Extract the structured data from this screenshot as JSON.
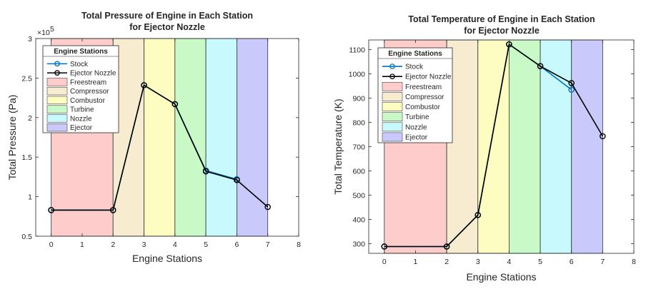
{
  "chart_data": [
    {
      "type": "line",
      "title": [
        "Total Pressure of Engine in Each Station",
        "for Ejector Nozzle"
      ],
      "xlabel": "Engine Stations",
      "ylabel": "Total Pressure (Pa)",
      "exponent_label": "×10",
      "exponent_power": "5",
      "xlim": [
        -0.5,
        8
      ],
      "ylim": [
        0.5,
        3
      ],
      "xticks": [
        "0",
        "1",
        "2",
        "3",
        "4",
        "5",
        "6",
        "7",
        "8"
      ],
      "xtick_values": [
        0,
        1,
        2,
        3,
        4,
        5,
        6,
        7,
        8
      ],
      "yticks": [
        "0.5",
        "1",
        "1.5",
        "2",
        "2.5",
        "3"
      ],
      "ytick_values": [
        0.5,
        1,
        1.5,
        2,
        2.5,
        3
      ],
      "legend": {
        "title": "Engine Stations",
        "placement": "top-left",
        "entries": [
          "Stock",
          "Ejector Nozzle",
          "Freestream",
          "Compressor",
          "Combustor",
          "Turbine",
          "Nozzle",
          "Ejector"
        ]
      },
      "regions": [
        {
          "name": "Freestream",
          "from": 0,
          "to": 2,
          "color": "#ffcccc"
        },
        {
          "name": "Compressor",
          "from": 2,
          "to": 3,
          "color": "#f7ebd0"
        },
        {
          "name": "Combustor",
          "from": 3,
          "to": 4,
          "color": "#fdfdc2"
        },
        {
          "name": "Turbine",
          "from": 4,
          "to": 5,
          "color": "#c8f9c6"
        },
        {
          "name": "Nozzle",
          "from": 5,
          "to": 6,
          "color": "#c8fafd"
        },
        {
          "name": "Ejector",
          "from": 6,
          "to": 7,
          "color": "#c9c9fc"
        }
      ],
      "series": [
        {
          "name": "Stock",
          "color": "#0072bd",
          "x": [
            0,
            2,
            3,
            4,
            5,
            6
          ],
          "y": [
            0.83,
            0.83,
            2.41,
            2.17,
            1.33,
            1.22
          ]
        },
        {
          "name": "Ejector Nozzle",
          "color": "#000000",
          "x": [
            0,
            2,
            3,
            4,
            5,
            6,
            7
          ],
          "y": [
            0.83,
            0.83,
            2.41,
            2.17,
            1.32,
            1.21,
            0.87
          ]
        }
      ]
    },
    {
      "type": "line",
      "title": [
        "Total Temperature of Engine in Each Station",
        "for Ejector Nozzle"
      ],
      "xlabel": "Engine Stations",
      "ylabel": "Total Temperature (K)",
      "xlim": [
        -0.5,
        8
      ],
      "ylim": [
        260,
        1140
      ],
      "xticks": [
        "0",
        "1",
        "2",
        "3",
        "4",
        "5",
        "6",
        "7",
        "8"
      ],
      "xtick_values": [
        0,
        1,
        2,
        3,
        4,
        5,
        6,
        7,
        8
      ],
      "yticks": [
        "300",
        "400",
        "500",
        "600",
        "700",
        "800",
        "900",
        "1000",
        "1100"
      ],
      "ytick_values": [
        300,
        400,
        500,
        600,
        700,
        800,
        900,
        1000,
        1100
      ],
      "legend": {
        "title": "Engine Stations",
        "placement": "top-left",
        "entries": [
          "Stock",
          "Ejector Nozzle",
          "Freestream",
          "Compressor",
          "Combustor",
          "Turbine",
          "Nozzle",
          "Ejector"
        ]
      },
      "regions": [
        {
          "name": "Freestream",
          "from": 0,
          "to": 2,
          "color": "#ffcccc"
        },
        {
          "name": "Compressor",
          "from": 2,
          "to": 3,
          "color": "#f7ebd0"
        },
        {
          "name": "Combustor",
          "from": 3,
          "to": 4,
          "color": "#fdfdc2"
        },
        {
          "name": "Turbine",
          "from": 4,
          "to": 5,
          "color": "#c8f9c6"
        },
        {
          "name": "Nozzle",
          "from": 5,
          "to": 6,
          "color": "#c8fafd"
        },
        {
          "name": "Ejector",
          "from": 6,
          "to": 7,
          "color": "#c9c9fc"
        }
      ],
      "series": [
        {
          "name": "Stock",
          "color": "#0072bd",
          "x": [
            0,
            2,
            3,
            4,
            5,
            6
          ],
          "y": [
            288,
            288,
            418,
            1122,
            1032,
            935
          ]
        },
        {
          "name": "Ejector Nozzle",
          "color": "#000000",
          "x": [
            0,
            2,
            3,
            4,
            5,
            6,
            7
          ],
          "y": [
            288,
            288,
            418,
            1122,
            1032,
            962,
            743
          ]
        }
      ]
    }
  ]
}
